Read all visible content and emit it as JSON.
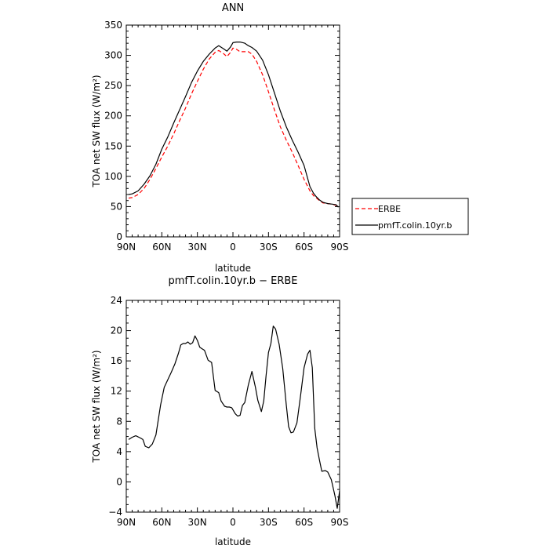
{
  "chart_data": [
    {
      "type": "line",
      "title": "ANN",
      "xlabel": "latitude",
      "ylabel": "TOA net SW flux (W/m²)",
      "xlim": [
        90,
        -90
      ],
      "ylim": [
        0,
        350
      ],
      "xticks": [
        90,
        60,
        30,
        0,
        -30,
        -60,
        -90
      ],
      "xtick_labels": [
        "90N",
        "60N",
        "30N",
        "0",
        "30S",
        "60S",
        "90S"
      ],
      "yticks": [
        0,
        50,
        100,
        150,
        200,
        250,
        300,
        350
      ],
      "ytick_labels": [
        "0",
        "50",
        "100",
        "150",
        "200",
        "250",
        "300",
        "350"
      ],
      "grid": false,
      "legend": "outside-right",
      "series": [
        {
          "name": "ERBE",
          "color": "#ff0000",
          "dash": "dashed",
          "x": [
            88,
            85,
            80,
            75,
            70,
            65,
            60,
            55,
            50,
            45,
            40,
            35,
            30,
            25,
            20,
            15,
            12,
            8,
            5,
            2,
            0,
            -3,
            -6,
            -10,
            -13,
            -16,
            -20,
            -25,
            -30,
            -35,
            -40,
            -45,
            -50,
            -55,
            -60,
            -65,
            -68,
            -70,
            -73,
            -76,
            -80,
            -84,
            -87,
            -89
          ],
          "y": [
            64,
            65,
            70,
            80,
            95,
            113,
            132,
            150,
            170,
            192,
            213,
            236,
            257,
            277,
            294,
            305,
            308,
            303,
            298,
            305,
            312,
            310,
            306,
            306,
            306,
            302,
            290,
            268,
            240,
            210,
            182,
            160,
            140,
            118,
            95,
            76,
            68,
            65,
            60,
            56,
            55,
            54,
            52,
            51
          ]
        },
        {
          "name": "pmfT.colin.10yr.b",
          "color": "#000000",
          "dash": "solid",
          "x": [
            88,
            85,
            80,
            75,
            70,
            65,
            60,
            55,
            50,
            45,
            40,
            35,
            30,
            25,
            20,
            15,
            12,
            8,
            5,
            2,
            0,
            -3,
            -6,
            -10,
            -13,
            -16,
            -20,
            -25,
            -30,
            -35,
            -40,
            -45,
            -50,
            -55,
            -60,
            -65,
            -68,
            -70,
            -73,
            -76,
            -80,
            -84,
            -87,
            -89
          ],
          "y": [
            70,
            71,
            76,
            87,
            101,
            120,
            145,
            165,
            188,
            210,
            232,
            255,
            274,
            290,
            302,
            312,
            316,
            311,
            307,
            314,
            321,
            322,
            322,
            320,
            316,
            313,
            307,
            292,
            268,
            238,
            208,
            182,
            160,
            140,
            118,
            83,
            72,
            67,
            61,
            57,
            55,
            54,
            53,
            49
          ]
        }
      ]
    },
    {
      "type": "line",
      "title": "pmfT.colin.10yr.b − ERBE",
      "xlabel": "latitude",
      "ylabel": "TOA net SW flux (W/m²)",
      "xlim": [
        90,
        -90
      ],
      "ylim": [
        -4,
        24
      ],
      "xticks": [
        90,
        60,
        30,
        0,
        -30,
        -60,
        -90
      ],
      "xtick_labels": [
        "90N",
        "60N",
        "30N",
        "0",
        "30S",
        "60S",
        "90S"
      ],
      "yticks": [
        -4,
        0,
        4,
        8,
        12,
        16,
        20,
        24
      ],
      "ytick_labels": [
        "−4",
        "0",
        "4",
        "8",
        "12",
        "16",
        "20",
        "24"
      ],
      "grid": false,
      "series": [
        {
          "color": "#000000",
          "dash": "solid",
          "x": [
            88,
            85,
            82,
            78,
            76,
            74,
            71,
            68,
            65,
            61,
            58,
            55,
            52,
            49,
            46,
            44,
            42,
            40,
            38,
            36,
            34,
            32,
            30,
            28,
            26,
            24,
            21,
            18,
            15,
            12,
            10,
            7,
            5,
            3,
            1,
            -2,
            -4,
            -6,
            -8,
            -10,
            -13,
            -16,
            -19,
            -21,
            -24,
            -26,
            -28,
            -30,
            -32,
            -34,
            -36,
            -39,
            -42,
            -45,
            -47,
            -49,
            -51,
            -54,
            -57,
            -60,
            -63,
            -65,
            -67,
            -69,
            -71,
            -73,
            -75,
            -78,
            -80,
            -83,
            -86,
            -88,
            -90
          ],
          "y": [
            5.6,
            5.9,
            6.1,
            5.8,
            5.6,
            4.7,
            4.5,
            5,
            6.2,
            10.2,
            12.5,
            13.5,
            14.5,
            15.6,
            17,
            18.1,
            18.3,
            18.3,
            18.5,
            18.2,
            18.4,
            19.3,
            18.7,
            17.8,
            17.6,
            17.4,
            16.1,
            15.8,
            12.1,
            11.8,
            10.7,
            10.0,
            9.9,
            9.9,
            9.8,
            9.0,
            8.7,
            8.8,
            10.1,
            10.5,
            12.8,
            14.6,
            12.5,
            10.8,
            9.3,
            10.7,
            14.1,
            17.1,
            18.3,
            20.6,
            20.2,
            18.2,
            15,
            10.2,
            7.3,
            6.5,
            6.6,
            7.8,
            11.3,
            15.1,
            16.9,
            17.4,
            15.1,
            7.1,
            4.5,
            2.9,
            1.4,
            1.5,
            1.3,
            0.3,
            -1.8,
            -3.5,
            -1.2
          ]
        }
      ]
    }
  ]
}
